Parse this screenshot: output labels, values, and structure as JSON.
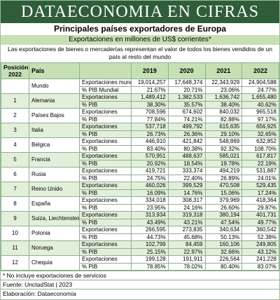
{
  "header": {
    "banner": "DATAECONOMIA EN CIFRAS",
    "title": "Principales países exportadores de Europa",
    "subtitle": "Exportaciones en millones de US$ corrientes*",
    "description": "Las exportaciones de bienes o mercaderías representan el valor de todos los bienes vendidos de un país al resto del mundo"
  },
  "table": {
    "columns": {
      "position": "Posición 2022",
      "country": "País",
      "years": [
        "2019",
        "2020",
        "2021",
        "2022"
      ]
    },
    "world": {
      "name": "Mundo",
      "rows": [
        [
          "Exportaciones mundiales",
          "19,014,257",
          "17,648,374",
          "22,343,929",
          "24,904,588"
        ],
        [
          "% PIB Mundial",
          "21.67%",
          "20.71%",
          "23.06%",
          "24.77%"
        ]
      ]
    },
    "countries": [
      {
        "position": "1",
        "name": "Alemania",
        "rows": [
          [
            "Exportaciones",
            "1,489,412",
            "1,382,533",
            "1,636,742",
            "1,655,480"
          ],
          [
            "% PIB",
            "38.30%",
            "35.57%",
            "38.40%",
            "40.62%"
          ]
        ]
      },
      {
        "position": "2",
        "name": "Países Bajos",
        "rows": [
          [
            "Exportaciones",
            "708,596",
            "674,602",
            "840,032",
            "965,518"
          ],
          [
            "% PIB",
            "77.84%",
            "74.21%",
            "82.88%",
            "97.17%"
          ]
        ]
      },
      {
        "position": "3",
        "name": "Italia",
        "rows": [
          [
            "Exportaciones",
            "537,718",
            "499,792",
            "615,635",
            "656,925"
          ],
          [
            "% PIB",
            "26.73%",
            "26.36%",
            "29.10%",
            "32.65%"
          ]
        ]
      },
      {
        "position": "4",
        "name": "Bélgica",
        "rows": [
          [
            "Exportaciones",
            "446,910",
            "421,842",
            "548,869",
            "632,852"
          ],
          [
            "% PIB",
            "83.40%",
            "80.38%",
            "92.32%",
            "108.70%"
          ]
        ]
      },
      {
        "position": "5",
        "name": "Francia",
        "rows": [
          [
            "Exportaciones",
            "570,951",
            "488,637",
            "585,021",
            "617,817"
          ],
          [
            "% PIB",
            "20.92%",
            "18.54%",
            "19.78%",
            "22.19%"
          ]
        ]
      },
      {
        "position": "6",
        "name": "Rusia",
        "rows": [
          [
            "Exportaciones",
            "419,721",
            "333,374",
            "494,219",
            "531,887"
          ],
          [
            "% PIB",
            "24.75%",
            "22.40%",
            "26.89%",
            "24.01%"
          ]
        ]
      },
      {
        "position": "7",
        "name": "Reino Unido",
        "rows": [
          [
            "Exportaciones",
            "460,026",
            "399,529",
            "470,508",
            "529,435"
          ],
          [
            "% PIB",
            "16.09%",
            "14.76%",
            "15.06%",
            "17.24%"
          ]
        ]
      },
      {
        "position": "8",
        "name": "España",
        "rows": [
          [
            "Exportaciones",
            "334,018",
            "308,317",
            "379,969",
            "418,364"
          ],
          [
            "% PIB",
            "23.95%",
            "24.16%",
            "26.60%",
            "29.87%"
          ]
        ]
      },
      {
        "position": "9",
        "name": "Suiza, Liechtenstein",
        "rows": [
          [
            "Exportaciones",
            "313,934",
            "319,318",
            "380,194",
            "401,731"
          ],
          [
            "% PIB",
            "43.49%",
            "43.21%",
            "47.54%",
            "49.77%"
          ]
        ]
      },
      {
        "position": "10",
        "name": "Polonia",
        "rows": [
          [
            "Exportaciones",
            "266,595",
            "273,835",
            "340,634",
            "360,542"
          ],
          [
            "% PIB",
            "44.73%",
            "45.68%",
            "50.13%",
            "52.38%"
          ]
        ]
      },
      {
        "position": "11",
        "name": "Noruega",
        "rows": [
          [
            "Exportaciones",
            "102,799",
            "84,459",
            "160,106",
            "249,805"
          ],
          [
            "% PIB",
            "25.15%",
            "22.97%",
            "32.66%",
            "43.12%"
          ]
        ]
      },
      {
        "position": "12",
        "name": "Chequia",
        "rows": [
          [
            "Exportaciones",
            "199,128",
            "191,911",
            "226,564",
            "241,228"
          ],
          [
            "% PIB",
            "78.85%",
            "78.02%",
            "80.40%",
            "83.07%"
          ]
        ]
      }
    ]
  },
  "footer": [
    "* No incluye exportaciones de servicios",
    "Fuente: UnctadStat | 2023",
    "Elaboración: Dataeconomía"
  ]
}
